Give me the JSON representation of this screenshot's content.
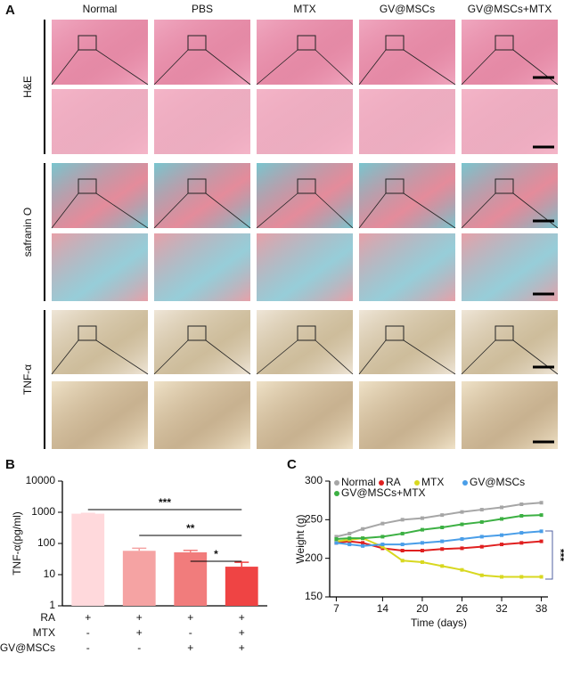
{
  "panel_a": {
    "label": "A",
    "columns": [
      "Normal",
      "PBS",
      "MTX",
      "GV@MSCs",
      "GV@MSCs+MTX"
    ],
    "rows": [
      "H&E",
      "safranin O",
      "TNF-α"
    ]
  },
  "chart_data": [
    {
      "type": "bar",
      "panel": "B",
      "ylabel": "TNF-α(pg/ml)",
      "log_scale": true,
      "categories": [
        null,
        null,
        null,
        null
      ],
      "values": [
        900,
        58,
        52,
        18
      ],
      "errors": [
        20,
        12,
        8,
        7
      ],
      "colors": [
        "#ffd9dc",
        "#f5a3a3",
        "#f17c7c",
        "#ef4444"
      ],
      "ylim": [
        1,
        10000
      ],
      "yticks": [
        1,
        10,
        100,
        1000,
        10000
      ],
      "annotations": [
        "***",
        "**",
        "*"
      ],
      "conditions": [
        {
          "name": "RA",
          "marks": [
            "+",
            "+",
            "+",
            "+"
          ]
        },
        {
          "name": "MTX",
          "marks": [
            "-",
            "+",
            "-",
            "+"
          ]
        },
        {
          "name": "GV@MSCs",
          "marks": [
            "-",
            "-",
            "+",
            "+"
          ]
        }
      ]
    },
    {
      "type": "line",
      "panel": "C",
      "xlabel": "Time (days)",
      "ylabel": "Weight (g)",
      "x": [
        7,
        9,
        11,
        14,
        17,
        20,
        23,
        26,
        29,
        32,
        35,
        38
      ],
      "series": [
        {
          "name": "Normal",
          "color": "#a6a6a6",
          "values": [
            228,
            232,
            238,
            245,
            250,
            252,
            256,
            260,
            263,
            266,
            270,
            272
          ]
        },
        {
          "name": "RA",
          "color": "#e02020",
          "values": [
            220,
            222,
            220,
            213,
            210,
            210,
            212,
            213,
            215,
            218,
            220,
            222
          ]
        },
        {
          "name": "MTX",
          "color": "#d8d820",
          "values": [
            222,
            224,
            226,
            215,
            197,
            195,
            190,
            185,
            178,
            176,
            176,
            176
          ]
        },
        {
          "name": "GV@MSCs",
          "color": "#4a9ee8",
          "values": [
            220,
            218,
            216,
            218,
            218,
            220,
            222,
            225,
            228,
            230,
            233,
            235
          ]
        },
        {
          "name": "GV@MSCs+MTX",
          "color": "#3cb043",
          "values": [
            225,
            226,
            226,
            228,
            232,
            237,
            240,
            244,
            247,
            251,
            255,
            256
          ]
        }
      ],
      "xlim": [
        6,
        39
      ],
      "ylim": [
        150,
        300
      ],
      "xticks": [
        7,
        14,
        20,
        26,
        32,
        38
      ],
      "yticks": [
        150,
        200,
        250,
        300
      ],
      "annotation": "***"
    }
  ]
}
